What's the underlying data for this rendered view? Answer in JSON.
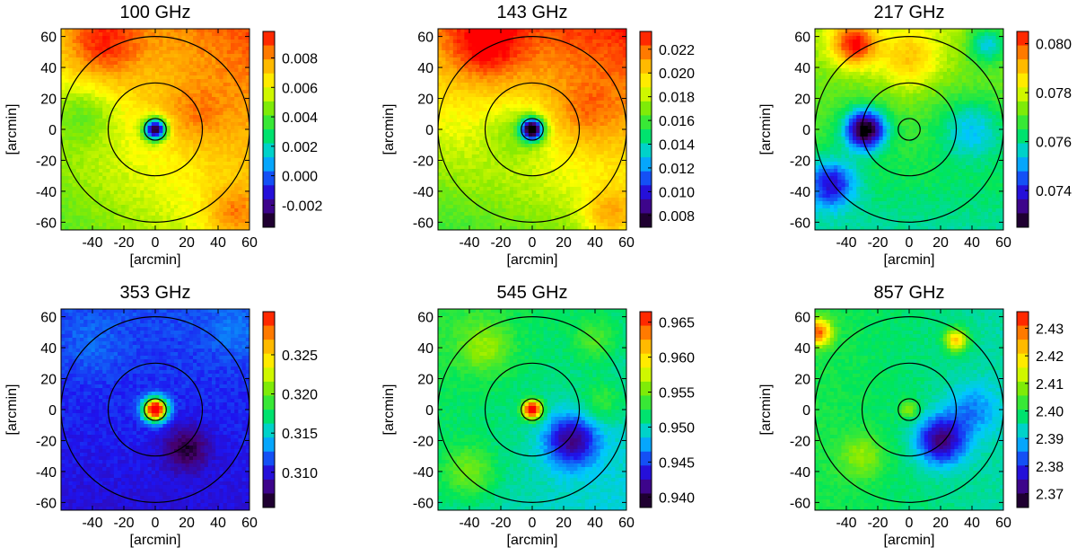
{
  "chart_data": [
    {
      "type": "heatmap",
      "title": "100 GHz",
      "xlabel": "[arcmin]",
      "ylabel": "[arcmin]",
      "xlim": [
        -60,
        60
      ],
      "ylim": [
        -65,
        65
      ],
      "x_ticks": [
        -40,
        -20,
        0,
        20,
        40,
        60
      ],
      "x_tick_labels": [
        "-40",
        "-20",
        "0",
        "20",
        "40",
        "60"
      ],
      "y_ticks": [
        60,
        40,
        20,
        0,
        -20,
        -40,
        -60
      ],
      "y_tick_labels": [
        "60",
        "40",
        "20",
        "0",
        "-20",
        "-40",
        "-60"
      ],
      "circle_radii": [
        7,
        30,
        60
      ],
      "colorbar": {
        "range": [
          -0.0035,
          0.0098
        ],
        "ticks": [
          0.008,
          0.006,
          0.004,
          0.002,
          0.0,
          -0.002
        ],
        "tick_labels": [
          "0.008",
          "0.006",
          "0.004",
          "0.002",
          "0.000",
          "-0.002"
        ]
      },
      "field": {
        "background": 0.0065,
        "gradient": [
          0.0012,
          0.0012
        ],
        "blobs": [
          {
            "x": 0,
            "y": 0,
            "amp": -0.01,
            "sigma": 5
          },
          {
            "x": -35,
            "y": 55,
            "amp": 0.0025,
            "sigma": 18
          },
          {
            "x": 50,
            "y": -55,
            "amp": 0.002,
            "sigma": 12
          },
          {
            "x": -45,
            "y": 10,
            "amp": -0.0015,
            "sigma": 15
          },
          {
            "x": 25,
            "y": 10,
            "amp": 0.0012,
            "sigma": 14
          }
        ]
      }
    },
    {
      "type": "heatmap",
      "title": "143 GHz",
      "xlabel": "[arcmin]",
      "ylabel": "[arcmin]",
      "xlim": [
        -60,
        60
      ],
      "ylim": [
        -65,
        65
      ],
      "x_ticks": [
        -40,
        -20,
        0,
        20,
        40,
        60
      ],
      "x_tick_labels": [
        "-40",
        "-20",
        "0",
        "20",
        "40",
        "60"
      ],
      "y_ticks": [
        60,
        40,
        20,
        0,
        -20,
        -40,
        -60
      ],
      "y_tick_labels": [
        "60",
        "40",
        "20",
        "0",
        "-20",
        "-40",
        "-60"
      ],
      "circle_radii": [
        7,
        30,
        60
      ],
      "colorbar": {
        "range": [
          0.007,
          0.0235
        ],
        "ticks": [
          0.022,
          0.02,
          0.018,
          0.016,
          0.014,
          0.012,
          0.01,
          0.008
        ],
        "tick_labels": [
          "0.022",
          "0.020",
          "0.018",
          "0.016",
          "0.014",
          "0.012",
          "0.010",
          "0.008"
        ]
      },
      "field": {
        "background": 0.0195,
        "gradient": [
          0.001,
          0.0025
        ],
        "blobs": [
          {
            "x": 0,
            "y": 0,
            "amp": -0.013,
            "sigma": 5
          },
          {
            "x": -30,
            "y": 55,
            "amp": 0.003,
            "sigma": 16
          },
          {
            "x": 50,
            "y": -55,
            "amp": 0.003,
            "sigma": 12
          },
          {
            "x": -10,
            "y": 0,
            "amp": -0.002,
            "sigma": 15
          },
          {
            "x": 35,
            "y": 10,
            "amp": 0.0015,
            "sigma": 14
          }
        ]
      }
    },
    {
      "type": "heatmap",
      "title": "217 GHz",
      "xlabel": "[arcmin]",
      "ylabel": "[arcmin]",
      "xlim": [
        -60,
        60
      ],
      "ylim": [
        -65,
        65
      ],
      "x_ticks": [
        -40,
        -20,
        0,
        20,
        40,
        60
      ],
      "x_tick_labels": [
        "-40",
        "-20",
        "0",
        "20",
        "40",
        "60"
      ],
      "y_ticks": [
        60,
        40,
        20,
        0,
        -20,
        -40,
        -60
      ],
      "y_tick_labels": [
        "60",
        "40",
        "20",
        "0",
        "-20",
        "-40",
        "-60"
      ],
      "circle_radii": [
        7,
        30,
        60
      ],
      "colorbar": {
        "range": [
          0.0725,
          0.0805
        ],
        "ticks": [
          0.08,
          0.078,
          0.076,
          0.074
        ],
        "tick_labels": [
          "0.080",
          "0.078",
          "0.076",
          "0.074"
        ]
      },
      "field": {
        "background": 0.0768,
        "gradient": [
          0,
          0.0008
        ],
        "blobs": [
          {
            "x": -28,
            "y": 0,
            "amp": -0.0045,
            "sigma": 9
          },
          {
            "x": -50,
            "y": -35,
            "amp": -0.0025,
            "sigma": 11
          },
          {
            "x": -35,
            "y": 55,
            "amp": 0.003,
            "sigma": 10
          },
          {
            "x": 40,
            "y": 0,
            "amp": -0.0015,
            "sigma": 14
          },
          {
            "x": 0,
            "y": 45,
            "amp": 0.0015,
            "sigma": 14
          },
          {
            "x": 50,
            "y": 55,
            "amp": -0.002,
            "sigma": 9
          }
        ]
      }
    },
    {
      "type": "heatmap",
      "title": "353 GHz",
      "xlabel": "[arcmin]",
      "ylabel": "[arcmin]",
      "xlim": [
        -60,
        60
      ],
      "ylim": [
        -65,
        65
      ],
      "x_ticks": [
        -40,
        -20,
        0,
        20,
        40,
        60
      ],
      "x_tick_labels": [
        "-40",
        "-20",
        "0",
        "20",
        "40",
        "60"
      ],
      "y_ticks": [
        60,
        40,
        20,
        0,
        -20,
        -40,
        -60
      ],
      "y_tick_labels": [
        "60",
        "40",
        "20",
        "0",
        "-20",
        "-40",
        "-60"
      ],
      "circle_radii": [
        7,
        30,
        60
      ],
      "colorbar": {
        "range": [
          0.3055,
          0.3305
        ],
        "ticks": [
          0.325,
          0.32,
          0.315,
          0.31
        ],
        "tick_labels": [
          "0.325",
          "0.320",
          "0.315",
          "0.310"
        ]
      },
      "field": {
        "background": 0.3108,
        "gradient": [
          0,
          0.0008
        ],
        "blobs": [
          {
            "x": 0,
            "y": 0,
            "amp": 0.024,
            "sigma": 5
          },
          {
            "x": 20,
            "y": -25,
            "amp": -0.004,
            "sigma": 10
          },
          {
            "x": 50,
            "y": 50,
            "amp": 0.0012,
            "sigma": 12
          },
          {
            "x": -40,
            "y": 40,
            "amp": 0.001,
            "sigma": 12
          }
        ]
      }
    },
    {
      "type": "heatmap",
      "title": "545 GHz",
      "xlabel": "[arcmin]",
      "ylabel": "[arcmin]",
      "xlim": [
        -60,
        60
      ],
      "ylim": [
        -65,
        65
      ],
      "x_ticks": [
        -40,
        -20,
        0,
        20,
        40,
        60
      ],
      "x_tick_labels": [
        "-40",
        "-20",
        "0",
        "20",
        "40",
        "60"
      ],
      "y_ticks": [
        60,
        40,
        20,
        0,
        -20,
        -40,
        -60
      ],
      "y_tick_labels": [
        "60",
        "40",
        "20",
        "0",
        "-20",
        "-40",
        "-60"
      ],
      "circle_radii": [
        7,
        30,
        60
      ],
      "colorbar": {
        "range": [
          0.9385,
          0.9665
        ],
        "ticks": [
          0.965,
          0.96,
          0.955,
          0.95,
          0.945,
          0.94
        ],
        "tick_labels": [
          "0.965",
          "0.960",
          "0.955",
          "0.950",
          "0.945",
          "0.940"
        ]
      },
      "field": {
        "background": 0.951,
        "gradient": [
          -0.001,
          0.001
        ],
        "blobs": [
          {
            "x": 0,
            "y": 0,
            "amp": 0.02,
            "sigma": 4
          },
          {
            "x": 25,
            "y": -20,
            "amp": -0.009,
            "sigma": 12
          },
          {
            "x": -30,
            "y": 40,
            "amp": 0.004,
            "sigma": 12
          },
          {
            "x": -40,
            "y": -40,
            "amp": 0.004,
            "sigma": 12
          },
          {
            "x": 40,
            "y": 45,
            "amp": 0.003,
            "sigma": 10
          },
          {
            "x": 45,
            "y": 5,
            "amp": 0.003,
            "sigma": 10
          }
        ]
      }
    },
    {
      "type": "heatmap",
      "title": "857 GHz",
      "xlabel": "[arcmin]",
      "ylabel": "[arcmin]",
      "xlim": [
        -60,
        60
      ],
      "ylim": [
        -65,
        65
      ],
      "x_ticks": [
        -40,
        -20,
        0,
        20,
        40,
        60
      ],
      "x_tick_labels": [
        "-40",
        "-20",
        "0",
        "20",
        "40",
        "60"
      ],
      "y_ticks": [
        60,
        40,
        20,
        0,
        -20,
        -40,
        -60
      ],
      "y_tick_labels": [
        "60",
        "40",
        "20",
        "0",
        "-20",
        "-40",
        "-60"
      ],
      "circle_radii": [
        7,
        30,
        60
      ],
      "colorbar": {
        "range": [
          2.365,
          2.436
        ],
        "ticks": [
          2.43,
          2.42,
          2.41,
          2.4,
          2.39,
          2.38,
          2.37
        ],
        "tick_labels": [
          "2.43",
          "2.42",
          "2.41",
          "2.40",
          "2.39",
          "2.38",
          "2.37"
        ]
      },
      "field": {
        "background": 2.398,
        "gradient": [
          -0.003,
          0
        ],
        "blobs": [
          {
            "x": 20,
            "y": -20,
            "amp": -0.025,
            "sigma": 11
          },
          {
            "x": -58,
            "y": 50,
            "amp": 0.03,
            "sigma": 6
          },
          {
            "x": 30,
            "y": 45,
            "amp": 0.025,
            "sigma": 5
          },
          {
            "x": 0,
            "y": 0,
            "amp": 0.012,
            "sigma": 4
          },
          {
            "x": -30,
            "y": -30,
            "amp": 0.01,
            "sigma": 10
          },
          {
            "x": 40,
            "y": 0,
            "amp": -0.01,
            "sigma": 12
          }
        ]
      }
    }
  ]
}
